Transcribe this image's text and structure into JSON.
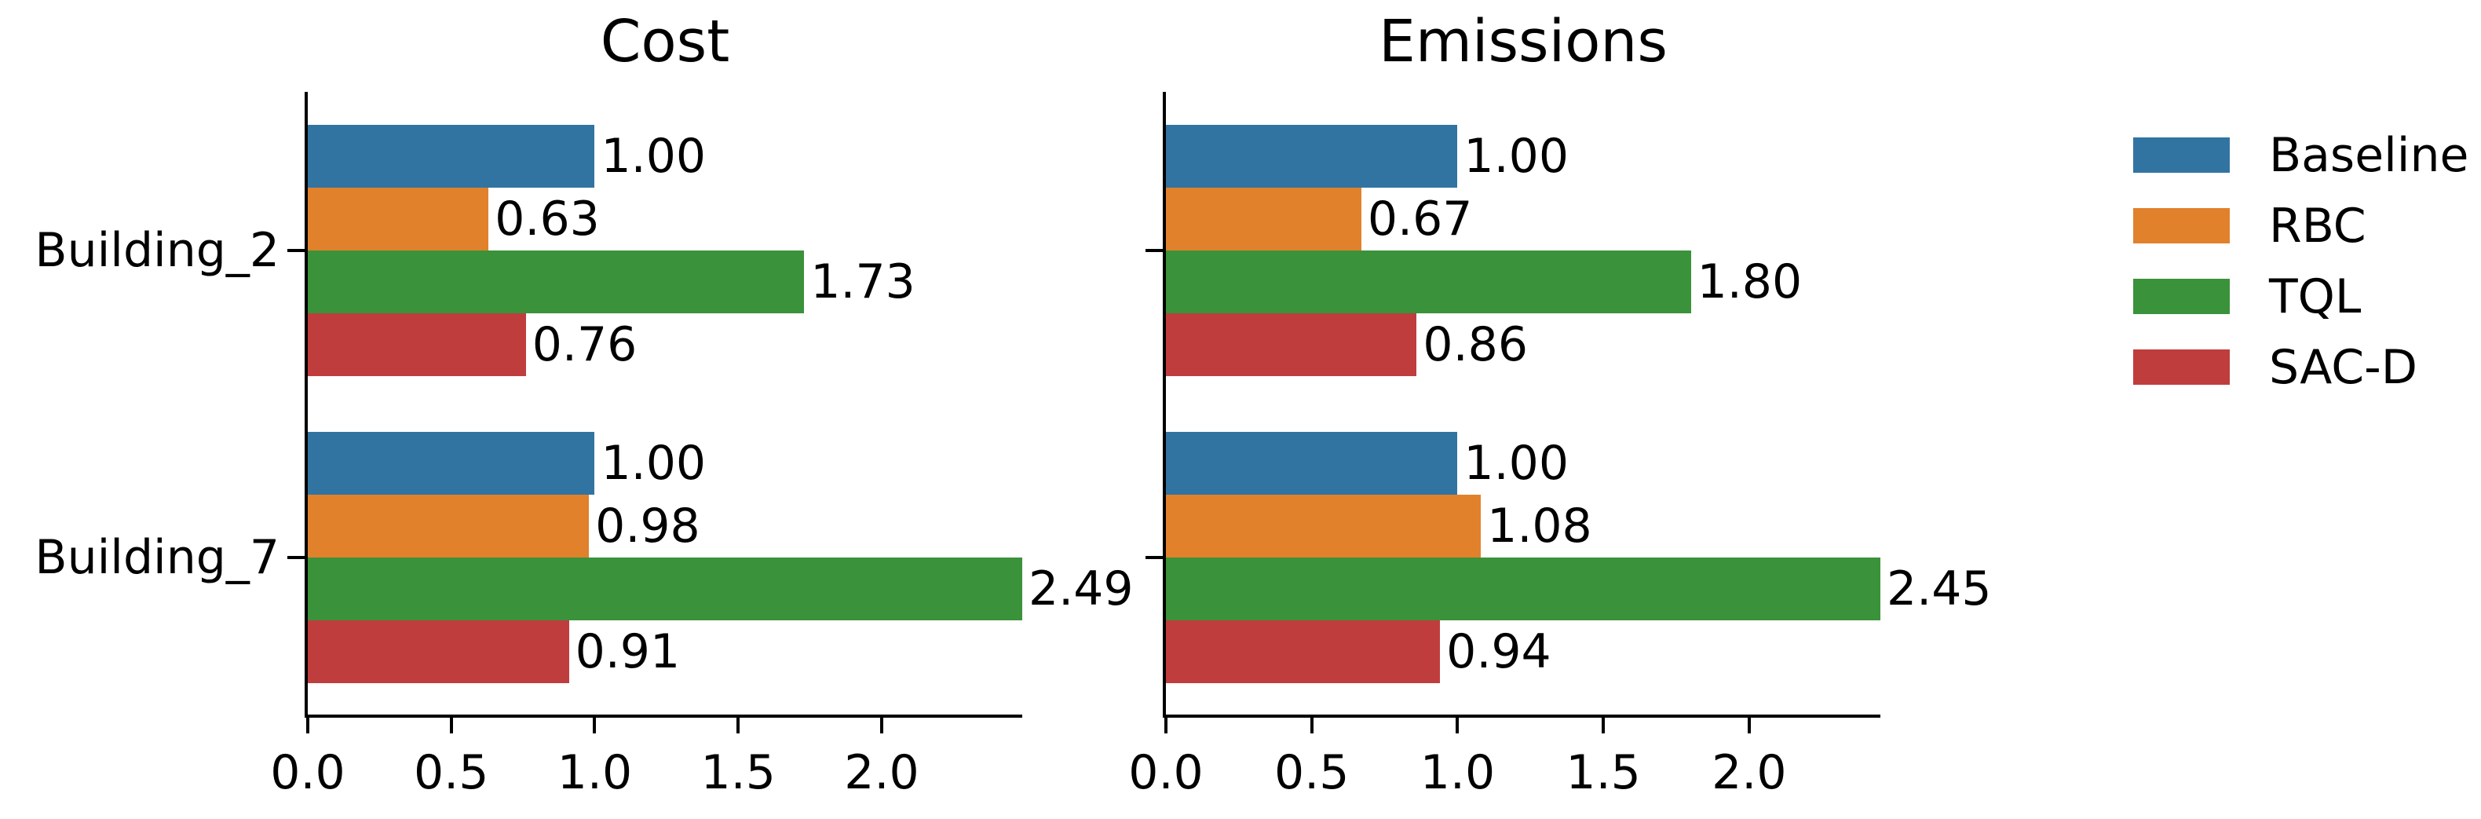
{
  "figure": {
    "background": "#ffffff",
    "axis_color": "#000000",
    "text_color": "#000000"
  },
  "chart_data": {
    "type": "bar",
    "orientation": "horizontal",
    "grid": false,
    "categories": [
      "Building_2",
      "Building_7"
    ],
    "legend": {
      "position": "right",
      "entries": [
        {
          "label": "Baseline",
          "color": "#3274a1"
        },
        {
          "label": "RBC",
          "color": "#e1812c"
        },
        {
          "label": "TQL",
          "color": "#3a923a"
        },
        {
          "label": "SAC-D",
          "color": "#c03d3e"
        }
      ]
    },
    "panels": [
      {
        "title": "Cost",
        "xlim": [
          0,
          2.49
        ],
        "xtick_values": [
          0,
          0.5,
          1.0,
          1.5,
          2.0
        ],
        "xtick_labels": [
          "0.0",
          "0.5",
          "1.0",
          "1.5",
          "2.0"
        ],
        "show_category_labels": true,
        "series": [
          {
            "name": "Baseline",
            "color": "#3274a1",
            "values": [
              1.0,
              1.0
            ],
            "value_labels": [
              "1.00",
              "1.00"
            ]
          },
          {
            "name": "RBC",
            "color": "#e1812c",
            "values": [
              0.63,
              0.98
            ],
            "value_labels": [
              "0.63",
              "0.98"
            ]
          },
          {
            "name": "TQL",
            "color": "#3a923a",
            "values": [
              1.73,
              2.49
            ],
            "value_labels": [
              "1.73",
              "2.49"
            ]
          },
          {
            "name": "SAC-D",
            "color": "#c03d3e",
            "values": [
              0.76,
              0.91
            ],
            "value_labels": [
              "0.76",
              "0.91"
            ]
          }
        ]
      },
      {
        "title": "Emissions",
        "xlim": [
          0,
          2.45
        ],
        "xtick_values": [
          0,
          0.5,
          1.0,
          1.5,
          2.0
        ],
        "xtick_labels": [
          "0.0",
          "0.5",
          "1.0",
          "1.5",
          "2.0"
        ],
        "show_category_labels": false,
        "series": [
          {
            "name": "Baseline",
            "color": "#3274a1",
            "values": [
              1.0,
              1.0
            ],
            "value_labels": [
              "1.00",
              "1.00"
            ]
          },
          {
            "name": "RBC",
            "color": "#e1812c",
            "values": [
              0.67,
              1.08
            ],
            "value_labels": [
              "0.67",
              "1.08"
            ]
          },
          {
            "name": "TQL",
            "color": "#3a923a",
            "values": [
              1.8,
              2.45
            ],
            "value_labels": [
              "1.80",
              "2.45"
            ]
          },
          {
            "name": "SAC-D",
            "color": "#c03d3e",
            "values": [
              0.86,
              0.94
            ],
            "value_labels": [
              "0.86",
              "0.94"
            ]
          }
        ]
      }
    ]
  }
}
